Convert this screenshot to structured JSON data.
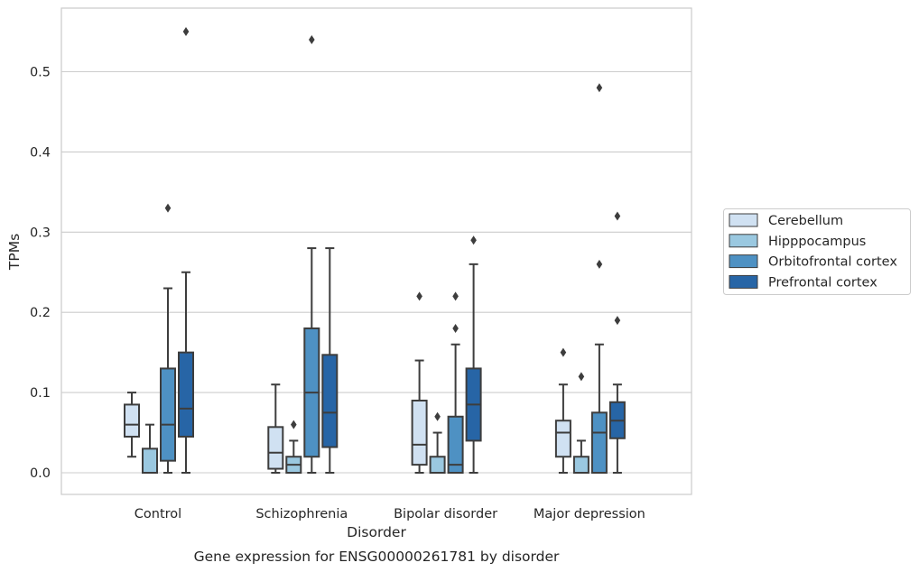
{
  "chart_data": {
    "type": "box",
    "caption": "Gene expression for ENSG00000261781 by disorder",
    "xlabel": "Disorder",
    "ylabel": "TPMs",
    "ylim": [
      -0.027,
      0.579
    ],
    "yticks": [
      0.0,
      0.1,
      0.2,
      0.3,
      0.4,
      0.5
    ],
    "ytick_labels": [
      "0.0",
      "0.1",
      "0.2",
      "0.3",
      "0.4",
      "0.5"
    ],
    "grid": "horizontal",
    "legend_position": "right",
    "categories": [
      "Control",
      "Schizophrenia",
      "Bipolar disorder",
      "Major depression"
    ],
    "series": [
      {
        "name": "Cerebellum",
        "color": "#d0e1f2",
        "boxes": [
          {
            "whisker_low": 0.02,
            "q1": 0.045,
            "median": 0.06,
            "q3": 0.085,
            "whisker_high": 0.1,
            "outliers": []
          },
          {
            "whisker_low": 0.0,
            "q1": 0.005,
            "median": 0.025,
            "q3": 0.057,
            "whisker_high": 0.11,
            "outliers": []
          },
          {
            "whisker_low": 0.0,
            "q1": 0.01,
            "median": 0.035,
            "q3": 0.09,
            "whisker_high": 0.14,
            "outliers": [
              0.22
            ]
          },
          {
            "whisker_low": 0.0,
            "q1": 0.02,
            "median": 0.05,
            "q3": 0.065,
            "whisker_high": 0.11,
            "outliers": [
              0.15
            ]
          }
        ]
      },
      {
        "name": "Hipppocampus",
        "color": "#9ac8e0",
        "boxes": [
          {
            "whisker_low": 0.0,
            "q1": 0.0,
            "median": 0.0,
            "q3": 0.03,
            "whisker_high": 0.06,
            "outliers": []
          },
          {
            "whisker_low": 0.0,
            "q1": 0.0,
            "median": 0.01,
            "q3": 0.02,
            "whisker_high": 0.04,
            "outliers": [
              0.06
            ]
          },
          {
            "whisker_low": 0.0,
            "q1": 0.0,
            "median": 0.0,
            "q3": 0.02,
            "whisker_high": 0.05,
            "outliers": [
              0.07
            ]
          },
          {
            "whisker_low": 0.0,
            "q1": 0.0,
            "median": 0.0,
            "q3": 0.02,
            "whisker_high": 0.04,
            "outliers": [
              0.12
            ]
          }
        ]
      },
      {
        "name": "Orbitofrontal cortex",
        "color": "#4e91c3",
        "boxes": [
          {
            "whisker_low": 0.0,
            "q1": 0.015,
            "median": 0.06,
            "q3": 0.13,
            "whisker_high": 0.23,
            "outliers": [
              0.33
            ]
          },
          {
            "whisker_low": 0.0,
            "q1": 0.02,
            "median": 0.1,
            "q3": 0.18,
            "whisker_high": 0.28,
            "outliers": [
              0.54
            ]
          },
          {
            "whisker_low": 0.0,
            "q1": 0.0,
            "median": 0.01,
            "q3": 0.07,
            "whisker_high": 0.16,
            "outliers": [
              0.18,
              0.22
            ]
          },
          {
            "whisker_low": 0.0,
            "q1": 0.0,
            "median": 0.05,
            "q3": 0.075,
            "whisker_high": 0.16,
            "outliers": [
              0.26,
              0.48
            ]
          }
        ]
      },
      {
        "name": "Prefrontal cortex",
        "color": "#2765a6",
        "boxes": [
          {
            "whisker_low": 0.0,
            "q1": 0.045,
            "median": 0.08,
            "q3": 0.15,
            "whisker_high": 0.25,
            "outliers": [
              0.55
            ]
          },
          {
            "whisker_low": 0.0,
            "q1": 0.032,
            "median": 0.075,
            "q3": 0.147,
            "whisker_high": 0.28,
            "outliers": []
          },
          {
            "whisker_low": 0.0,
            "q1": 0.04,
            "median": 0.085,
            "q3": 0.13,
            "whisker_high": 0.26,
            "outliers": [
              0.29
            ]
          },
          {
            "whisker_low": 0.0,
            "q1": 0.043,
            "median": 0.065,
            "q3": 0.088,
            "whisker_high": 0.11,
            "outliers": [
              0.19,
              0.32
            ]
          }
        ]
      }
    ]
  }
}
